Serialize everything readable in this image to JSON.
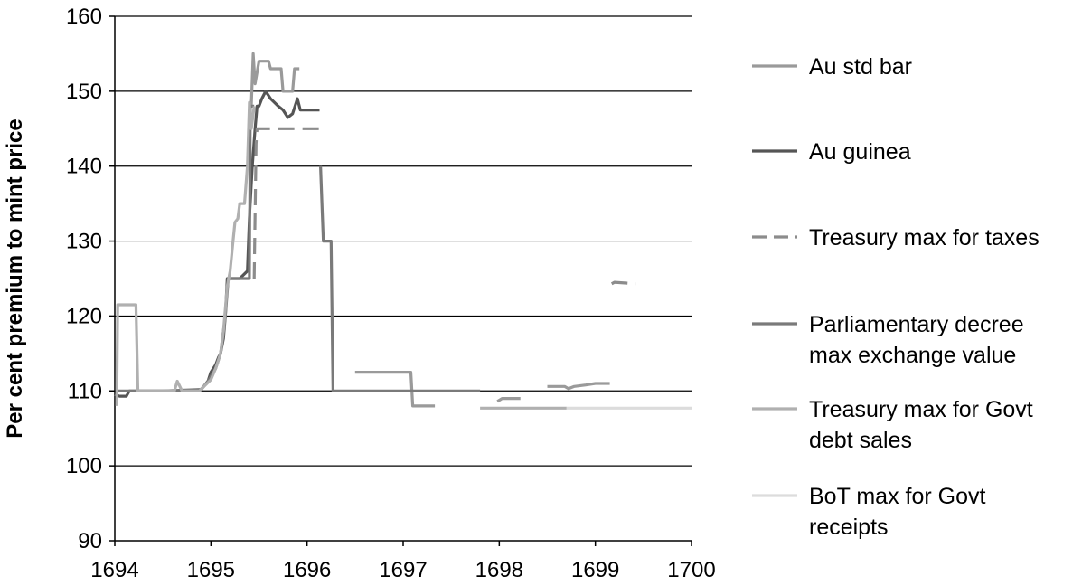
{
  "chart_data": {
    "type": "line",
    "title": "",
    "xlabel": "",
    "ylabel": "Per cent premium to mint price",
    "xlim": [
      1694,
      1700
    ],
    "ylim": [
      90,
      160
    ],
    "x_ticks": [
      1694,
      1695,
      1696,
      1697,
      1698,
      1699,
      1700
    ],
    "y_ticks": [
      90,
      100,
      110,
      120,
      130,
      140,
      150,
      160
    ],
    "grid": "horizontal",
    "legend_position": "right",
    "series": [
      {
        "name": "Au std bar",
        "color": "#9a9a9a",
        "dash": "",
        "segments": [
          [
            [
              1695.42,
              148
            ],
            [
              1695.44,
              155
            ],
            [
              1695.46,
              151
            ],
            [
              1695.5,
              154
            ],
            [
              1695.6,
              154
            ],
            [
              1695.62,
              153
            ],
            [
              1695.73,
              153
            ],
            [
              1695.75,
              150
            ],
            [
              1695.85,
              150
            ],
            [
              1695.87,
              153
            ],
            [
              1695.92,
              153
            ]
          ],
          [
            [
              1696.5,
              112.5
            ],
            [
              1696.83,
              112.5
            ],
            [
              1697.08,
              112.5
            ],
            [
              1697.1,
              108
            ],
            [
              1697.33,
              108
            ]
          ],
          [
            [
              1697.98,
              108.6
            ],
            [
              1698.03,
              109
            ],
            [
              1698.22,
              109
            ]
          ],
          [
            [
              1698.5,
              110.6
            ],
            [
              1698.68,
              110.6
            ],
            [
              1698.72,
              110.3
            ],
            [
              1698.78,
              110.6
            ],
            [
              1698.9,
              110.8
            ],
            [
              1699.0,
              111
            ],
            [
              1699.15,
              111
            ]
          ]
        ]
      },
      {
        "name": "Au guinea",
        "color": "#555555",
        "dash": "",
        "segments": [
          [
            [
              1694,
              109.5
            ],
            [
              1694.05,
              109.3
            ],
            [
              1694.12,
              109.3
            ],
            [
              1694.15,
              110
            ],
            [
              1694.3,
              110
            ],
            [
              1694.6,
              110
            ],
            [
              1694.88,
              110
            ],
            [
              1694.92,
              110.5
            ],
            [
              1694.97,
              111.3
            ],
            [
              1695.0,
              112.5
            ],
            [
              1695.05,
              113.5
            ],
            [
              1695.08,
              114.5
            ],
            [
              1695.1,
              115
            ],
            [
              1695.13,
              117
            ],
            [
              1695.15,
              120
            ],
            [
              1695.17,
              125
            ],
            [
              1695.22,
              125
            ],
            [
              1695.3,
              125
            ],
            [
              1695.38,
              126
            ],
            [
              1695.4,
              133
            ],
            [
              1695.43,
              140
            ],
            [
              1695.46,
              145
            ],
            [
              1695.48,
              148
            ],
            [
              1695.5,
              148
            ],
            [
              1695.53,
              149
            ],
            [
              1695.57,
              150
            ],
            [
              1695.62,
              149
            ],
            [
              1695.7,
              148
            ],
            [
              1695.75,
              147.5
            ],
            [
              1695.8,
              146.5
            ],
            [
              1695.85,
              147
            ],
            [
              1695.9,
              149
            ],
            [
              1695.93,
              147.5
            ],
            [
              1696.13,
              147.5
            ]
          ]
        ]
      },
      {
        "name": "Treasury max for taxes",
        "color": "#8c8c8c",
        "dash": "18,9",
        "segments": [
          [
            [
              1695.45,
              125
            ],
            [
              1695.47,
              143
            ],
            [
              1695.48,
              145
            ],
            [
              1696.15,
              145
            ]
          ],
          [
            [
              1699.17,
              124.3
            ],
            [
              1699.2,
              124.5
            ],
            [
              1699.42,
              124.3
            ]
          ]
        ]
      },
      {
        "name": "Parliamentary decree max exchange value",
        "color": "#7a7a7a",
        "dash": "",
        "segments": [
          [
            [
              1694.02,
              110
            ],
            [
              1694.2,
              110
            ],
            [
              1694.5,
              110
            ],
            [
              1694.9,
              110.2
            ],
            [
              1694.98,
              111.5
            ],
            [
              1695.05,
              113
            ],
            [
              1695.1,
              115
            ],
            [
              1695.15,
              120
            ],
            [
              1695.18,
              125
            ],
            [
              1695.4,
              125
            ],
            [
              1695.41,
              148
            ],
            [
              1695.45,
              148
            ]
          ],
          [
            [
              1696.14,
              140
            ],
            [
              1696.17,
              130
            ],
            [
              1696.25,
              130
            ],
            [
              1696.27,
              110
            ],
            [
              1696.8,
              110
            ],
            [
              1697.3,
              110
            ],
            [
              1697.8,
              110
            ]
          ]
        ]
      },
      {
        "name": "Treasury max for Govt debt sales",
        "color": "#b0b0b0",
        "dash": "",
        "segments": [
          [
            [
              1694.02,
              108
            ],
            [
              1694.03,
              121.5
            ],
            [
              1694.22,
              121.5
            ],
            [
              1694.24,
              110
            ],
            [
              1694.5,
              110
            ],
            [
              1694.62,
              110
            ],
            [
              1694.65,
              111.3
            ],
            [
              1694.7,
              110
            ],
            [
              1694.88,
              110
            ],
            [
              1694.92,
              110.5
            ],
            [
              1695.0,
              111.5
            ],
            [
              1695.05,
              113
            ],
            [
              1695.1,
              115
            ],
            [
              1695.13,
              118
            ],
            [
              1695.15,
              121
            ],
            [
              1695.17,
              124
            ],
            [
              1695.2,
              126
            ],
            [
              1695.23,
              130
            ],
            [
              1695.25,
              132.5
            ],
            [
              1695.28,
              133
            ],
            [
              1695.3,
              135
            ],
            [
              1695.35,
              135
            ],
            [
              1695.38,
              140
            ],
            [
              1695.4,
              148.5
            ],
            [
              1695.42,
              145
            ],
            [
              1695.45,
              148
            ]
          ],
          [
            [
              1697.8,
              107.7
            ],
            [
              1698.3,
              107.7
            ],
            [
              1698.7,
              107.7
            ]
          ]
        ]
      },
      {
        "name": "BoT max for Govt receipts",
        "color": "#dcdcdc",
        "dash": "",
        "segments": [
          [
            [
              1698.7,
              107.7
            ],
            [
              1699.5,
              107.7
            ],
            [
              1700,
              107.7
            ]
          ]
        ]
      }
    ],
    "legend": [
      {
        "lines": [
          "Au std bar"
        ]
      },
      {
        "lines": [
          "Au guinea"
        ]
      },
      {
        "lines": [
          "Treasury max for taxes"
        ]
      },
      {
        "lines": [
          "Parliamentary decree",
          "max exchange value"
        ]
      },
      {
        "lines": [
          "Treasury max for Govt",
          "debt sales"
        ]
      },
      {
        "lines": [
          "BoT max for Govt",
          "receipts"
        ]
      }
    ]
  }
}
